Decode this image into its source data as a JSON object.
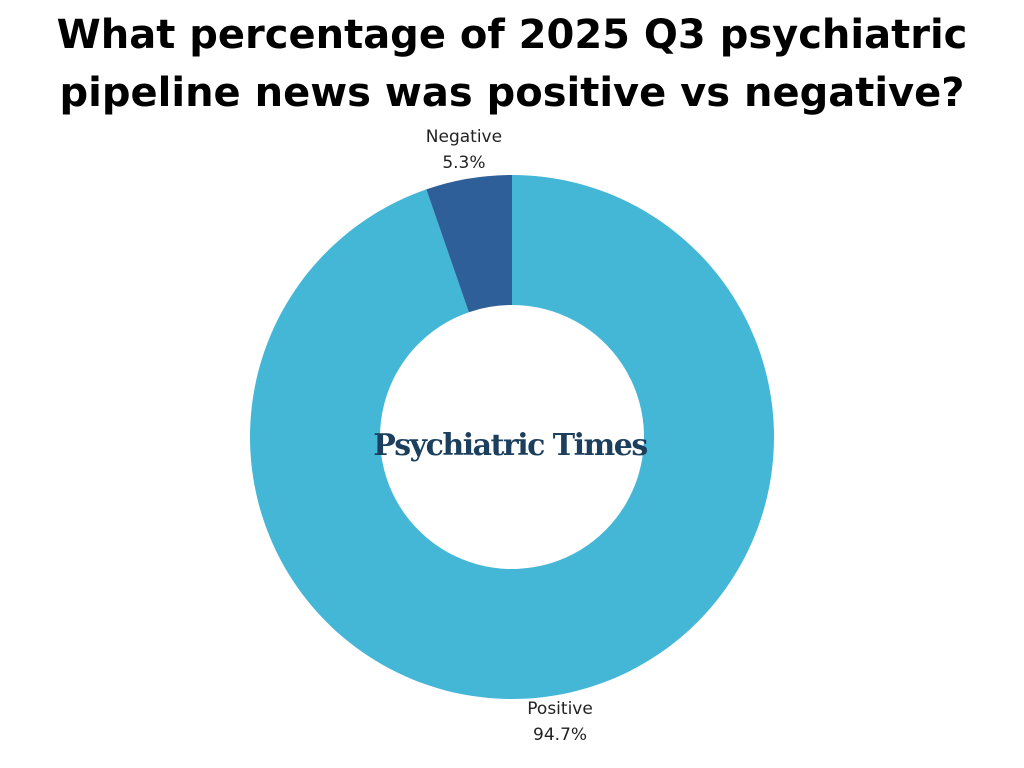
{
  "chart_data": {
    "type": "donut",
    "title": "What percentage of 2025 Q3 psychiatric pipeline news was positive vs negative?",
    "categories": [
      "Positive",
      "Negative"
    ],
    "values": [
      94.7,
      5.3
    ],
    "value_labels": [
      "94.7%",
      "5.3%"
    ],
    "colors": [
      "#44b7d6",
      "#2e5f98"
    ],
    "center_label": "Psychiatric Times"
  }
}
